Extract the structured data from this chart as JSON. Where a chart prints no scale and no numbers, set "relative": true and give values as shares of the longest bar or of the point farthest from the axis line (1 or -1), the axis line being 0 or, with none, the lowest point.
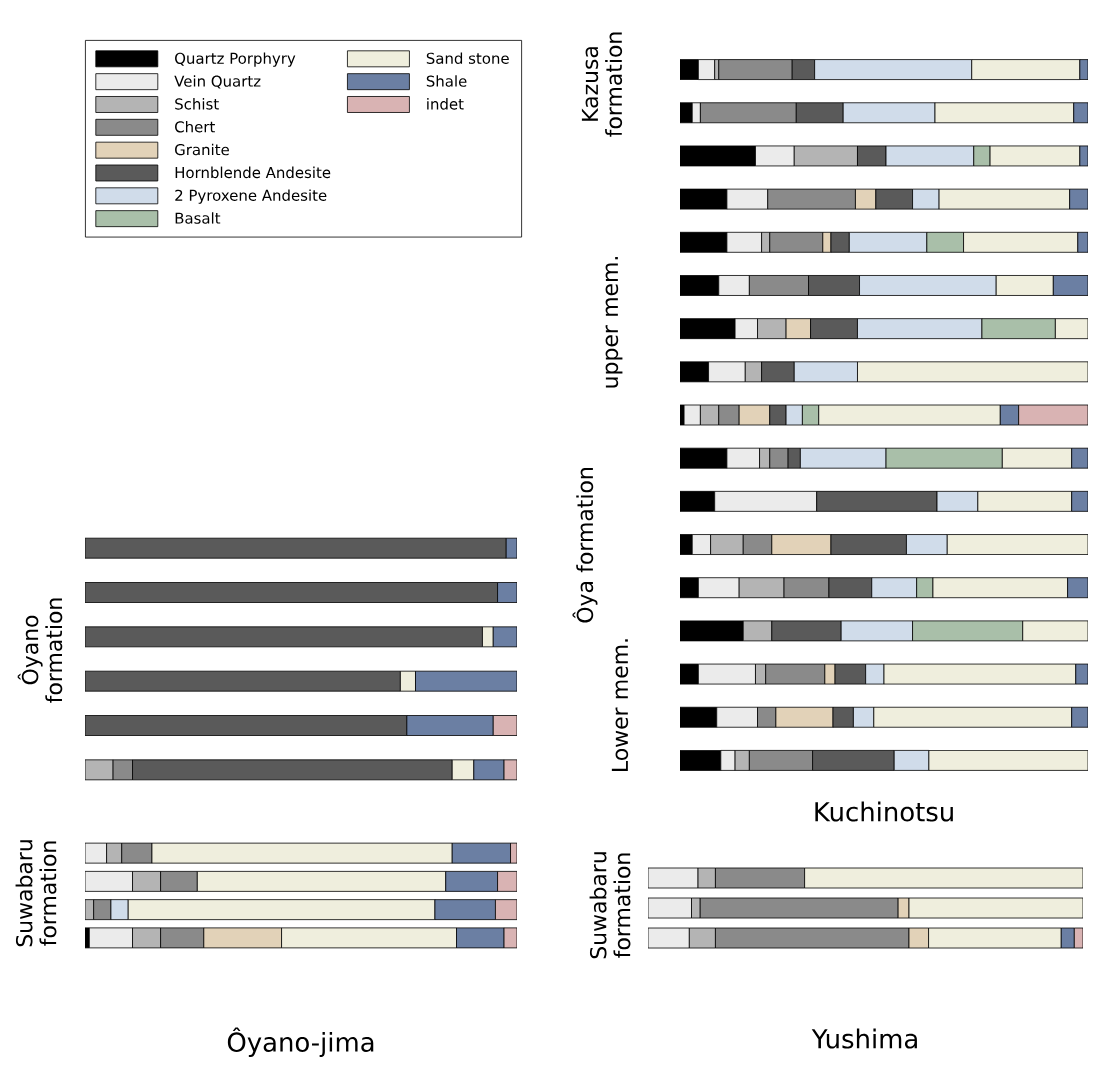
{
  "chart_data": [
    {
      "type": "bar",
      "orientation": "horizontal",
      "stacked": true,
      "relative": true,
      "categories": [
        null,
        null,
        null,
        null,
        null,
        null
      ],
      "annotations": [
        "Ôyano formation"
      ],
      "series": [
        {
          "color": "#b4b4b4",
          "values": [
            null,
            null,
            null,
            null,
            null,
            0.065
          ]
        },
        {
          "color": "#8a8a8a",
          "values": [
            null,
            null,
            null,
            null,
            null,
            0.045
          ]
        },
        {
          "color": "#5a5a5a",
          "values": [
            0.975,
            0.955,
            0.92,
            0.73,
            0.745,
            0.74
          ]
        },
        {
          "color": "#efeedd",
          "values": [
            null,
            null,
            0.025,
            0.035,
            null,
            0.05
          ]
        },
        {
          "color": "#6b7fa3",
          "values": [
            0.025,
            0.045,
            0.055,
            0.235,
            0.2,
            0.07
          ]
        },
        {
          "color": "#d9b3b3",
          "values": [
            null,
            null,
            null,
            null,
            0.055,
            0.03
          ]
        }
      ]
    },
    {
      "type": "bar",
      "orientation": "horizontal",
      "stacked": true,
      "relative": true,
      "title": "Ôyano-jima",
      "categories": [
        null,
        null,
        null,
        null
      ],
      "annotations": [
        "Suwabaru formation"
      ],
      "series": [
        {
          "color": "#000000",
          "values": [
            null,
            null,
            null,
            0.01
          ]
        },
        {
          "color": "#ebebeb",
          "values": [
            0.05,
            0.11,
            null,
            0.1
          ]
        },
        {
          "color": "#b4b4b4",
          "values": [
            0.035,
            0.065,
            0.02,
            0.065
          ]
        },
        {
          "color": "#8a8a8a",
          "values": [
            0.07,
            0.085,
            0.04,
            0.1
          ]
        },
        {
          "color": "#e2d2b8",
          "values": [
            null,
            null,
            null,
            0.18
          ]
        },
        {
          "color": "#d0dcea",
          "values": [
            null,
            null,
            0.04,
            null
          ]
        },
        {
          "color": "#efeedd",
          "values": [
            0.695,
            0.575,
            0.71,
            0.405
          ]
        },
        {
          "color": "#6b7fa3",
          "values": [
            0.135,
            0.12,
            0.14,
            0.11
          ]
        },
        {
          "color": "#d9b3b3",
          "values": [
            0.015,
            0.045,
            0.05,
            0.03
          ]
        }
      ]
    },
    {
      "type": "bar",
      "orientation": "horizontal",
      "stacked": true,
      "relative": true,
      "title": "Kuchinotsu",
      "legend": "left",
      "categories": [
        null,
        null,
        null,
        null,
        null,
        null,
        null,
        null,
        null,
        null,
        null,
        null,
        null,
        null,
        null,
        null,
        null
      ],
      "annotations": [
        "Kazusa formation",
        "Ôya formation",
        "upper mem.",
        "Lower mem."
      ],
      "series": [
        {
          "name": "Quartz Porphyry",
          "color": "#000000",
          "values": [
            0.045,
            0.03,
            0.185,
            0.115,
            0.115,
            0.095,
            0.135,
            0.07,
            0.01,
            0.115,
            0.085,
            0.03,
            0.045,
            0.155,
            0.045,
            0.09,
            0.1
          ]
        },
        {
          "name": "Vein Quartz",
          "color": "#ebebeb",
          "values": [
            0.04,
            0.02,
            0.095,
            0.1,
            0.085,
            0.075,
            0.055,
            0.09,
            0.04,
            0.08,
            0.25,
            0.045,
            0.1,
            null,
            0.14,
            0.1,
            0.035
          ]
        },
        {
          "name": "Schist",
          "color": "#b4b4b4",
          "values": [
            0.01,
            null,
            0.155,
            null,
            0.02,
            null,
            0.07,
            0.04,
            0.045,
            0.025,
            null,
            0.08,
            0.11,
            0.07,
            0.025,
            null,
            0.035
          ]
        },
        {
          "name": "Chert",
          "color": "#8a8a8a",
          "values": [
            0.18,
            0.235,
            null,
            0.215,
            0.13,
            0.145,
            null,
            null,
            0.05,
            0.045,
            null,
            0.07,
            0.11,
            null,
            0.145,
            0.045,
            0.155
          ]
        },
        {
          "name": "Granite",
          "color": "#e2d2b8",
          "values": [
            null,
            null,
            null,
            0.05,
            0.02,
            null,
            0.06,
            null,
            0.075,
            null,
            null,
            0.145,
            null,
            null,
            0.025,
            0.14,
            null
          ]
        },
        {
          "name": "Hornblende Andesite",
          "color": "#5a5a5a",
          "values": [
            0.055,
            0.115,
            0.07,
            0.09,
            0.045,
            0.125,
            0.115,
            0.08,
            0.04,
            0.03,
            0.295,
            0.185,
            0.105,
            0.17,
            0.075,
            0.05,
            0.2
          ]
        },
        {
          "name": "2 Pyroxene Andesite",
          "color": "#d0dcea",
          "values": [
            0.385,
            0.225,
            0.215,
            0.065,
            0.19,
            0.335,
            0.305,
            0.155,
            0.04,
            0.21,
            0.1,
            0.1,
            0.11,
            0.175,
            0.045,
            0.05,
            0.085
          ]
        },
        {
          "name": "Basalt",
          "color": "#a9bfa9",
          "values": [
            null,
            null,
            0.04,
            null,
            0.09,
            null,
            0.18,
            null,
            0.04,
            0.285,
            null,
            null,
            0.04,
            0.27,
            null,
            null,
            null
          ]
        },
        {
          "name": "Sand stone",
          "color": "#efeedd",
          "values": [
            0.265,
            0.34,
            0.22,
            0.32,
            0.28,
            0.14,
            0.08,
            0.565,
            0.445,
            0.17,
            0.23,
            0.345,
            0.33,
            0.16,
            0.47,
            0.485,
            0.39
          ]
        },
        {
          "name": "Shale",
          "color": "#6b7fa3",
          "values": [
            0.02,
            0.035,
            0.02,
            0.045,
            0.025,
            0.085,
            null,
            null,
            0.045,
            0.04,
            0.04,
            null,
            0.05,
            null,
            0.03,
            0.04,
            null
          ]
        },
        {
          "name": "indet",
          "color": "#d9b3b3",
          "values": [
            null,
            null,
            null,
            null,
            null,
            null,
            null,
            null,
            0.17,
            null,
            null,
            null,
            null,
            null,
            null,
            null,
            null
          ]
        }
      ]
    },
    {
      "type": "bar",
      "orientation": "horizontal",
      "stacked": true,
      "relative": true,
      "title": "Yushima",
      "categories": [
        null,
        null,
        null
      ],
      "annotations": [
        "Suwabaru formation"
      ],
      "series": [
        {
          "color": "#ebebeb",
          "values": [
            0.115,
            0.1,
            0.095
          ]
        },
        {
          "color": "#b4b4b4",
          "values": [
            0.04,
            0.02,
            0.06
          ]
        },
        {
          "color": "#8a8a8a",
          "values": [
            0.205,
            0.455,
            0.445
          ]
        },
        {
          "color": "#e2d2b8",
          "values": [
            null,
            0.025,
            0.045
          ]
        },
        {
          "color": "#efeedd",
          "values": [
            0.64,
            0.4,
            0.305
          ]
        },
        {
          "color": "#6b7fa3",
          "values": [
            null,
            null,
            0.03
          ]
        },
        {
          "color": "#d9b3b3",
          "values": [
            null,
            null,
            0.02
          ]
        }
      ]
    }
  ]
}
